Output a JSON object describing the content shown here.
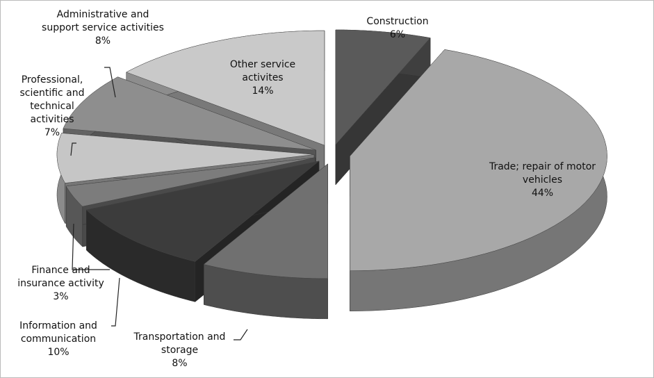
{
  "chart_data": {
    "type": "pie3d",
    "categories": [
      "Construction",
      "Trade; repair of motor vehicles",
      "Transportation and storage",
      "Information and communication",
      "Finance and insurance activity",
      "Professional, scientific and technical activities",
      "Administrative and support service activities",
      "Other service activites"
    ],
    "values": [
      6,
      44,
      8,
      10,
      3,
      7,
      8,
      14
    ],
    "value_labels": [
      "6%",
      "44%",
      "8%",
      "10%",
      "3%",
      "7%",
      "8%",
      "14%"
    ],
    "colors": [
      "#5a5a5a",
      "#a8a8a8",
      "#707070",
      "#3c3c3c",
      "#7c7c7c",
      "#c6c6c6",
      "#8e8e8e",
      "#c9c9c9"
    ]
  }
}
